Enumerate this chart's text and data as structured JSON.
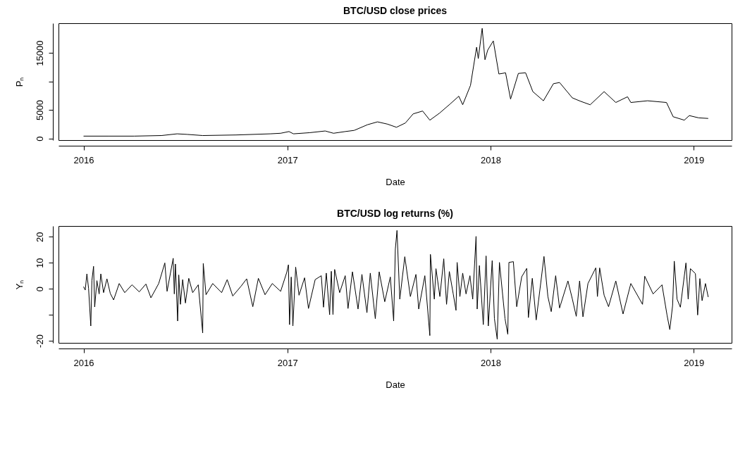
{
  "chart_data": [
    {
      "type": "line",
      "title": "BTC/USD close prices",
      "xlabel": "Date",
      "ylabel": "Pₙ",
      "x": [
        "2016-01-01",
        "2016-02-15",
        "2016-04-01",
        "2016-05-20",
        "2016-06-17",
        "2016-07-05",
        "2016-08-02",
        "2016-10-01",
        "2016-12-01",
        "2016-12-20",
        "2017-01-04",
        "2017-01-12",
        "2017-02-10",
        "2017-03-10",
        "2017-03-25",
        "2017-04-15",
        "2017-05-01",
        "2017-05-25",
        "2017-06-12",
        "2017-06-30",
        "2017-07-16",
        "2017-08-01",
        "2017-08-15",
        "2017-09-01",
        "2017-09-14",
        "2017-10-01",
        "2017-10-20",
        "2017-11-05",
        "2017-11-12",
        "2017-11-26",
        "2017-12-07",
        "2017-12-10",
        "2017-12-17",
        "2017-12-22",
        "2017-12-27",
        "2018-01-06",
        "2018-01-16",
        "2018-01-28",
        "2018-02-06",
        "2018-02-20",
        "2018-03-05",
        "2018-03-18",
        "2018-04-06",
        "2018-04-24",
        "2018-05-05",
        "2018-05-28",
        "2018-06-12",
        "2018-06-29",
        "2018-07-24",
        "2018-08-14",
        "2018-09-04",
        "2018-09-10",
        "2018-10-10",
        "2018-11-13",
        "2018-11-25",
        "2018-12-15",
        "2018-12-24",
        "2019-01-10",
        "2019-01-27"
      ],
      "series": [
        {
          "color": "#000000",
          "values": [
            400,
            400,
            400,
            500,
            800,
            700,
            500,
            600,
            800,
            900,
            1200,
            800,
            1000,
            1300,
            900,
            1200,
            1400,
            2400,
            2900,
            2500,
            1950,
            2700,
            4300,
            4800,
            3200,
            4400,
            6000,
            7400,
            5900,
            9300,
            16000,
            14000,
            19300,
            13800,
            15500,
            17100,
            11300,
            11500,
            6900,
            11400,
            11500,
            8200,
            6600,
            9600,
            9800,
            7100,
            6500,
            5900,
            8200,
            6300,
            7300,
            6300,
            6600,
            6300,
            3800,
            3200,
            4000,
            3600,
            3500
          ]
        }
      ],
      "xlim": [
        "2015-11-17",
        "2019-03-10"
      ],
      "xticks": [
        {
          "value": "2016-01-01",
          "label": "2016"
        },
        {
          "value": "2017-01-01",
          "label": "2017"
        },
        {
          "value": "2018-01-01",
          "label": "2018"
        },
        {
          "value": "2019-01-01",
          "label": "2019"
        }
      ],
      "ylim": [
        -300,
        20200
      ],
      "yticks": [
        0,
        5000,
        {
          "value": 10000,
          "label": null
        },
        15000
      ],
      "grid": false,
      "marker": "none",
      "line_style": "solid"
    },
    {
      "type": "line",
      "title": "BTC/USD log returns (%)",
      "xlabel": "Date",
      "ylabel": "Yₙ",
      "x": [
        "2016-01-01",
        "2016-01-04",
        "2016-01-07",
        "2016-01-10",
        "2016-01-14",
        "2016-01-16",
        "2016-01-19",
        "2016-01-21",
        "2016-01-25",
        "2016-01-29",
        "2016-02-01",
        "2016-02-06",
        "2016-02-12",
        "2016-02-18",
        "2016-02-24",
        "2016-03-05",
        "2016-03-15",
        "2016-03-28",
        "2016-04-10",
        "2016-04-22",
        "2016-05-01",
        "2016-05-15",
        "2016-05-26",
        "2016-05-30",
        "2016-06-10",
        "2016-06-12",
        "2016-06-14",
        "2016-06-18",
        "2016-06-20",
        "2016-06-23",
        "2016-06-27",
        "2016-07-02",
        "2016-07-08",
        "2016-07-15",
        "2016-07-25",
        "2016-08-02",
        "2016-08-03",
        "2016-08-08",
        "2016-08-20",
        "2016-09-05",
        "2016-09-15",
        "2016-09-25",
        "2016-10-10",
        "2016-10-20",
        "2016-10-31",
        "2016-11-10",
        "2016-11-22",
        "2016-12-05",
        "2016-12-20",
        "2016-12-31",
        "2017-01-03",
        "2017-01-05",
        "2017-01-08",
        "2017-01-11",
        "2017-01-16",
        "2017-01-22",
        "2017-02-01",
        "2017-02-08",
        "2017-02-20",
        "2017-03-03",
        "2017-03-07",
        "2017-03-12",
        "2017-03-18",
        "2017-03-21",
        "2017-03-24",
        "2017-03-27",
        "2017-04-05",
        "2017-04-15",
        "2017-04-20",
        "2017-04-28",
        "2017-05-08",
        "2017-05-15",
        "2017-05-24",
        "2017-05-30",
        "2017-06-08",
        "2017-06-15",
        "2017-06-25",
        "2017-07-05",
        "2017-07-11",
        "2017-07-14",
        "2017-07-17",
        "2017-07-22",
        "2017-07-31",
        "2017-08-10",
        "2017-08-20",
        "2017-08-25",
        "2017-09-05",
        "2017-09-14",
        "2017-09-15",
        "2017-09-22",
        "2017-09-25",
        "2017-10-02",
        "2017-10-09",
        "2017-10-14",
        "2017-10-19",
        "2017-10-26",
        "2017-10-31",
        "2017-11-02",
        "2017-11-07",
        "2017-11-12",
        "2017-11-18",
        "2017-11-25",
        "2017-11-30",
        "2017-12-06",
        "2017-12-08",
        "2017-12-12",
        "2017-12-19",
        "2017-12-24",
        "2017-12-28",
        "2018-01-04",
        "2018-01-08",
        "2018-01-13",
        "2018-01-17",
        "2018-01-27",
        "2018-02-01",
        "2018-02-03",
        "2018-02-11",
        "2018-02-17",
        "2018-02-26",
        "2018-03-07",
        "2018-03-10",
        "2018-03-17",
        "2018-03-24",
        "2018-04-07",
        "2018-04-14",
        "2018-04-20",
        "2018-04-28",
        "2018-05-05",
        "2018-05-20",
        "2018-05-28",
        "2018-06-04",
        "2018-06-10",
        "2018-06-16",
        "2018-06-25",
        "2018-07-09",
        "2018-07-12",
        "2018-07-16",
        "2018-07-24",
        "2018-08-01",
        "2018-08-14",
        "2018-08-27",
        "2018-09-10",
        "2018-10-01",
        "2018-10-05",
        "2018-10-20",
        "2018-11-05",
        "2018-11-14",
        "2018-11-19",
        "2018-11-24",
        "2018-11-27",
        "2018-12-02",
        "2018-12-08",
        "2018-12-18",
        "2018-12-22",
        "2018-12-26",
        "2019-01-04",
        "2019-01-08",
        "2019-01-12",
        "2019-01-16",
        "2019-01-22",
        "2019-01-27"
      ],
      "series": [
        {
          "color": "#000000",
          "values": [
            0.8,
            -0.5,
            5.7,
            0.2,
            -14.3,
            3.2,
            8.6,
            -7.0,
            3.1,
            -2.0,
            5.7,
            -1.5,
            3.8,
            -1.8,
            -4.3,
            2.0,
            -1.5,
            1.5,
            -1.2,
            1.8,
            -3.5,
            2.0,
            9.9,
            -1.0,
            11.7,
            -2.0,
            9.5,
            -12.4,
            5.3,
            -6.0,
            3.5,
            -5.5,
            4.0,
            -1.5,
            1.5,
            -17.0,
            9.7,
            -2.3,
            2.0,
            -1.5,
            3.5,
            -2.8,
            1.0,
            3.8,
            -6.9,
            4.0,
            -2.3,
            2.0,
            -1.0,
            6.3,
            9.2,
            -13.8,
            4.5,
            -14.3,
            8.3,
            -2.5,
            4.2,
            -7.6,
            3.5,
            5.0,
            -7.1,
            6.0,
            -10.0,
            6.7,
            -9.9,
            7.4,
            -1.5,
            5.0,
            -7.6,
            6.5,
            -7.8,
            5.5,
            -9.2,
            6.0,
            -11.5,
            6.5,
            -5.0,
            4.5,
            -12.4,
            15.2,
            22.4,
            -4.0,
            12.3,
            -3.0,
            5.5,
            -7.8,
            5.0,
            -18.0,
            13.2,
            -4.0,
            7.7,
            -3.0,
            11.5,
            -6.0,
            6.6,
            -2.0,
            -8.3,
            10.1,
            -3.0,
            6.0,
            -2.0,
            5.0,
            -4.0,
            20.1,
            -7.8,
            8.9,
            -13.8,
            12.6,
            -14.3,
            10.8,
            -11.5,
            -19.4,
            10.1,
            -11.5,
            -17.5,
            10.1,
            10.4,
            -6.9,
            4.6,
            7.8,
            -11.1,
            4.0,
            -12.0,
            12.4,
            -3.0,
            -8.8,
            5.0,
            -7.4,
            3.0,
            -4.0,
            -10.6,
            3.0,
            -10.8,
            2.0,
            8.0,
            -3.0,
            8.0,
            -2.5,
            -6.9,
            3.0,
            -9.7,
            2.0,
            -6.0,
            4.8,
            -2.0,
            1.5,
            -10.1,
            -15.7,
            -6.5,
            10.6,
            -4.0,
            -7.1,
            9.9,
            -4.0,
            7.7,
            5.8,
            -10.1,
            3.9,
            -4.6,
            2.0,
            -3.2
          ]
        }
      ],
      "xlim": [
        "2015-11-17",
        "2019-03-10"
      ],
      "xticks": [
        {
          "value": "2016-01-01",
          "label": "2016"
        },
        {
          "value": "2017-01-01",
          "label": "2017"
        },
        {
          "value": "2018-01-01",
          "label": "2018"
        },
        {
          "value": "2019-01-01",
          "label": "2019"
        }
      ],
      "ylim": [
        -20.8,
        24.1
      ],
      "yticks": [
        -20,
        {
          "value": -10,
          "label": null
        },
        0,
        10,
        20
      ],
      "grid": false,
      "marker": "none",
      "line_style": "solid"
    }
  ]
}
